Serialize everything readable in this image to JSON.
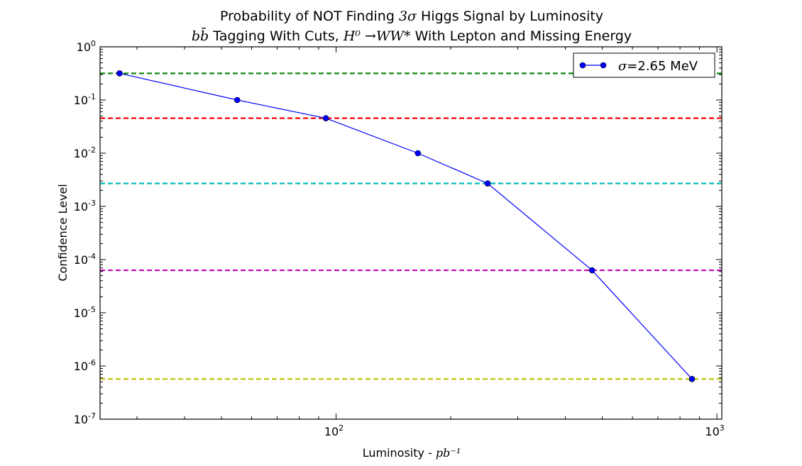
{
  "chart_data": {
    "type": "line",
    "title": "Probability of NOT Finding 3σ Higgs Signal by Luminosity",
    "title_parts": {
      "prefix": "Probability of NOT Finding ",
      "math": "3σ",
      "suffix": " Higgs Signal by Luminosity"
    },
    "subtitle": "bb̄ Tagging With Cuts, H⁰ →WW* With Lepton and Missing Energy",
    "subtitle_parts": {
      "math1": "bb̄",
      "text1": " Tagging With Cuts, ",
      "math2": "H⁰ →WW*",
      "text2": " With Lepton and Missing Energy"
    },
    "xlabel": "Luminosity - pb⁻¹",
    "xlabel_parts": {
      "text": "Luminosity - ",
      "math": "pb⁻¹"
    },
    "ylabel": "Confidence Level",
    "xscale": "log",
    "yscale": "log",
    "xlim": [
      24,
      1030
    ],
    "ylim": [
      1e-07,
      1
    ],
    "x_ticks": [
      {
        "value": 100,
        "label": "10",
        "exp": "2"
      },
      {
        "value": 1000,
        "label": "10",
        "exp": "3"
      }
    ],
    "y_ticks": [
      {
        "value": 1,
        "label": "10",
        "exp": "0"
      },
      {
        "value": 0.1,
        "label": "10",
        "exp": "-1"
      },
      {
        "value": 0.01,
        "label": "10",
        "exp": "-2"
      },
      {
        "value": 0.001,
        "label": "10",
        "exp": "-3"
      },
      {
        "value": 0.0001,
        "label": "10",
        "exp": "-4"
      },
      {
        "value": 1e-05,
        "label": "10",
        "exp": "-5"
      },
      {
        "value": 1e-06,
        "label": "10",
        "exp": "-6"
      },
      {
        "value": 1e-07,
        "label": "10",
        "exp": "-7"
      }
    ],
    "series": [
      {
        "name": "σ=2.65 MeV",
        "color": "#0000ff",
        "marker": "circle",
        "x": [
          27,
          55,
          94,
          164,
          250,
          470,
          860
        ],
        "y": [
          0.317,
          0.1,
          0.0455,
          0.01,
          0.0027,
          6.3e-05,
          5.7e-07
        ]
      }
    ],
    "reference_lines": [
      {
        "y": 0.317,
        "color": "#008000",
        "style": "dashed"
      },
      {
        "y": 0.0455,
        "color": "#ff0000",
        "style": "dashed"
      },
      {
        "y": 0.0027,
        "color": "#00bfbf",
        "style": "dashed"
      },
      {
        "y": 6.3e-05,
        "color": "#bf00bf",
        "style": "dashed"
      },
      {
        "y": 5.7e-07,
        "color": "#bfbf00",
        "style": "dashed"
      }
    ],
    "legend": {
      "position": "top-right",
      "math": "σ",
      "text": "=2.65 MeV"
    },
    "grid": false
  }
}
